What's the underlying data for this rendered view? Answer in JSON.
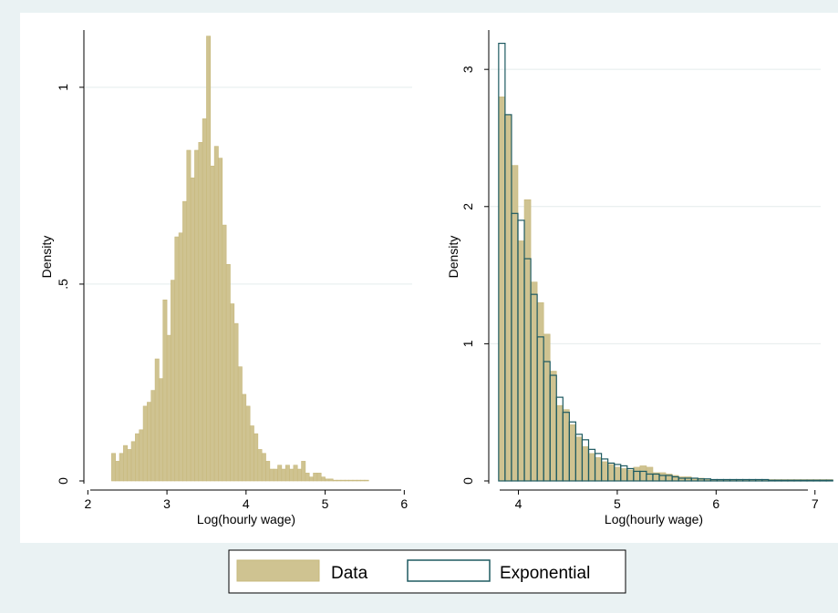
{
  "colors": {
    "outer_bg": "#eaf2f3",
    "plot_bg": "#ffffff",
    "data_fill": "#cfc391",
    "data_stroke": "#c7b87c",
    "exp_stroke": "#1e5a61",
    "grid": "#e4ecec",
    "axis": "#000000"
  },
  "legend": {
    "items": [
      {
        "label": "Data",
        "style": "filled"
      },
      {
        "label": "Exponential",
        "style": "outline"
      }
    ]
  },
  "chart_data": [
    {
      "type": "bar",
      "xlabel": "Log(hourly wage)",
      "ylabel": "Density",
      "xlim": [
        1.95,
        6.1
      ],
      "ylim": [
        0,
        1.15
      ],
      "xticks": [
        "2",
        "3",
        "4",
        "5",
        "6"
      ],
      "yticks": [
        "0",
        ".5",
        "1"
      ],
      "grid": true,
      "bin_start": 2.3,
      "bin_width": 0.05,
      "series": [
        {
          "name": "Data",
          "style": "filled",
          "values": [
            0.07,
            0.05,
            0.07,
            0.09,
            0.08,
            0.1,
            0.12,
            0.13,
            0.19,
            0.2,
            0.23,
            0.31,
            0.26,
            0.46,
            0.37,
            0.51,
            0.62,
            0.63,
            0.71,
            0.84,
            0.77,
            0.84,
            0.86,
            0.92,
            1.13,
            0.8,
            0.85,
            0.82,
            0.65,
            0.55,
            0.45,
            0.4,
            0.29,
            0.22,
            0.19,
            0.14,
            0.12,
            0.08,
            0.07,
            0.05,
            0.03,
            0.03,
            0.04,
            0.03,
            0.04,
            0.03,
            0.04,
            0.03,
            0.05,
            0.02,
            0.01,
            0.02,
            0.02,
            0.01,
            0.005,
            0.005,
            0.002,
            0.002,
            0.002,
            0.002,
            0.002,
            0.002,
            0.002,
            0.002,
            0.002
          ]
        }
      ]
    },
    {
      "type": "bar",
      "xlabel": "Log(hourly wage)",
      "ylabel": "Density",
      "xlim": [
        3.7,
        7.15
      ],
      "ylim": [
        0,
        3.3
      ],
      "xticks": [
        "4",
        "5",
        "6",
        "7"
      ],
      "yticks": [
        "0",
        "1",
        "2",
        "3"
      ],
      "grid": true,
      "bin_start": 3.8,
      "bin_width": 0.065,
      "series": [
        {
          "name": "Data",
          "style": "filled",
          "values": [
            2.8,
            2.67,
            2.3,
            1.75,
            2.05,
            1.45,
            1.3,
            1.07,
            0.8,
            0.55,
            0.52,
            0.41,
            0.32,
            0.25,
            0.2,
            0.17,
            0.14,
            0.12,
            0.1,
            0.09,
            0.08,
            0.1,
            0.11,
            0.1,
            0.06,
            0.06,
            0.05,
            0.04,
            0.03,
            0.03,
            0.02,
            0.02,
            0.01,
            0.01,
            0.01,
            0.01,
            0.01,
            0.01,
            0.01,
            0.01,
            0.01,
            0.01,
            0.01,
            0.01,
            0.01,
            0.01,
            0.01,
            0.01,
            0.01,
            0.01,
            0.01,
            0.01
          ]
        },
        {
          "name": "Exponential",
          "style": "outline",
          "values": [
            3.19,
            2.67,
            1.95,
            1.9,
            1.62,
            1.36,
            1.05,
            0.87,
            0.77,
            0.61,
            0.5,
            0.43,
            0.34,
            0.3,
            0.23,
            0.2,
            0.16,
            0.13,
            0.12,
            0.11,
            0.09,
            0.07,
            0.07,
            0.05,
            0.05,
            0.04,
            0.04,
            0.03,
            0.02,
            0.02,
            0.02,
            0.015,
            0.015,
            0.01,
            0.01,
            0.01,
            0.01,
            0.01,
            0.01,
            0.01,
            0.01,
            0.01,
            0.005,
            0.005,
            0.005,
            0.005,
            0.005,
            0.005,
            0.005,
            0.005,
            0.005,
            0.005
          ]
        }
      ]
    }
  ]
}
